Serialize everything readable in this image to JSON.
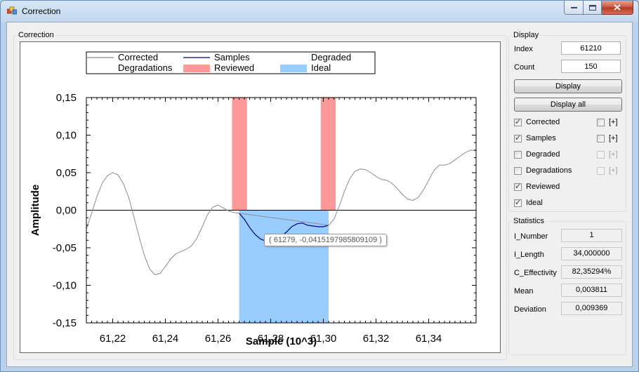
{
  "window": {
    "title": "Correction"
  },
  "chart_group": {
    "legend": "Correction"
  },
  "chart_data": {
    "type": "line",
    "xlabel": "Sample (10^3)",
    "ylabel": "Amplitude",
    "xlim": [
      61.21,
      61.358
    ],
    "ylim": [
      -0.15,
      0.15
    ],
    "x_ticks": [
      "61,22",
      "61,24",
      "61,26",
      "61,28",
      "61,30",
      "61,32",
      "61,34"
    ],
    "x_tick_values": [
      61.22,
      61.24,
      61.26,
      61.28,
      61.3,
      61.32,
      61.34
    ],
    "y_ticks": [
      "0,15",
      "0,10",
      "0,05",
      "0,00",
      "-0,05",
      "-0,10",
      "-0,15"
    ],
    "y_tick_values": [
      0.15,
      0.1,
      0.05,
      0.0,
      -0.05,
      -0.1,
      -0.15
    ],
    "legend": {
      "placement": "top",
      "entries": [
        {
          "name": "Corrected",
          "swatch": "line",
          "color": "#8c8c8c"
        },
        {
          "name": "Samples",
          "swatch": "line",
          "color": "#000080"
        },
        {
          "name": "Degraded",
          "swatch": "none",
          "color": "#ffffff"
        },
        {
          "name": "Degradations",
          "swatch": "none",
          "color": "#ffffff"
        },
        {
          "name": "Reviewed",
          "swatch": "block",
          "color": "#ff9999"
        },
        {
          "name": "Ideal",
          "swatch": "block",
          "color": "#99ccff"
        }
      ]
    },
    "reviewed_regions": [
      [
        61.2653,
        61.271
      ],
      [
        61.299,
        61.3047
      ]
    ],
    "ideal_region": {
      "x": [
        61.268,
        61.302
      ],
      "y": [
        -0.15,
        0.0
      ]
    },
    "series": [
      {
        "name": "Corrected",
        "color": "#8c8c8c",
        "x": [
          61.21,
          61.212,
          61.214,
          61.216,
          61.218,
          61.22,
          61.222,
          61.224,
          61.226,
          61.228,
          61.23,
          61.232,
          61.234,
          61.236,
          61.238,
          61.24,
          61.242,
          61.244,
          61.246,
          61.248,
          61.25,
          61.252,
          61.254,
          61.256,
          61.258,
          61.26,
          61.262,
          61.264,
          61.266,
          61.268,
          61.302,
          61.304,
          61.306,
          61.308,
          61.31,
          61.312,
          61.314,
          61.316,
          61.318,
          61.32,
          61.322,
          61.324,
          61.326,
          61.328,
          61.33,
          61.332,
          61.334,
          61.336,
          61.338,
          61.34,
          61.342,
          61.344,
          61.346,
          61.348,
          61.35,
          61.352,
          61.354,
          61.356,
          61.358
        ],
        "y": [
          -0.025,
          -0.004,
          0.018,
          0.036,
          0.046,
          0.05,
          0.047,
          0.036,
          0.018,
          -0.008,
          -0.035,
          -0.06,
          -0.078,
          -0.086,
          -0.084,
          -0.075,
          -0.065,
          -0.058,
          -0.055,
          -0.052,
          -0.047,
          -0.037,
          -0.022,
          -0.006,
          0.004,
          0.007,
          0.003,
          -0.001,
          -0.003,
          -0.004,
          -0.02,
          -0.012,
          0.005,
          0.025,
          0.042,
          0.052,
          0.055,
          0.054,
          0.05,
          0.045,
          0.041,
          0.04,
          0.036,
          0.029,
          0.021,
          0.015,
          0.013,
          0.017,
          0.027,
          0.04,
          0.053,
          0.06,
          0.06,
          0.062,
          0.067,
          0.072,
          0.077,
          0.08,
          0.079
        ]
      },
      {
        "name": "Samples",
        "color": "#000080",
        "x": [
          61.268,
          61.27,
          61.272,
          61.274,
          61.276,
          61.278,
          61.28,
          61.282,
          61.284,
          61.286,
          61.288,
          61.29,
          61.292,
          61.294,
          61.296,
          61.298,
          61.3,
          61.302
        ],
        "y": [
          -0.004,
          -0.012,
          -0.023,
          -0.032,
          -0.038,
          -0.041,
          -0.041,
          -0.039,
          -0.035,
          -0.029,
          -0.022,
          -0.018,
          -0.017,
          -0.02,
          -0.021,
          -0.022,
          -0.022,
          -0.02
        ]
      },
      {
        "name": "Degraded",
        "color": "#8c8c8c",
        "x": [
          61.268,
          61.302
        ],
        "y": [
          -0.004,
          -0.02
        ]
      }
    ]
  },
  "tooltip": {
    "text": "( 61279, -0,0415197985809109 )"
  },
  "display_group": {
    "legend": "Display",
    "index_label": "Index",
    "index_value": "61210",
    "count_label": "Count",
    "count_value": "150",
    "display_button": "Display",
    "display_all_button": "Display all",
    "checkboxes": [
      {
        "label": "Corrected",
        "checked": true,
        "plus_label": "[+]",
        "plus_enabled": true
      },
      {
        "label": "Samples",
        "checked": true,
        "plus_label": "[+]",
        "plus_enabled": true
      },
      {
        "label": "Degraded",
        "checked": false,
        "plus_label": "[+]",
        "plus_enabled": false
      },
      {
        "label": "Degradations",
        "checked": false,
        "plus_label": "[+]",
        "plus_enabled": false
      },
      {
        "label": "Reviewed",
        "checked": true
      },
      {
        "label": "Ideal",
        "checked": true
      }
    ]
  },
  "statistics_group": {
    "legend": "Statistics",
    "rows": [
      {
        "label": "I_Number",
        "value": "1"
      },
      {
        "label": "I_Length",
        "value": "34,000000"
      },
      {
        "label": "C_Effectivity",
        "value": "82,35294%"
      },
      {
        "label": "Mean",
        "value": "0,003811"
      },
      {
        "label": "Deviation",
        "value": "0,009369"
      }
    ]
  }
}
